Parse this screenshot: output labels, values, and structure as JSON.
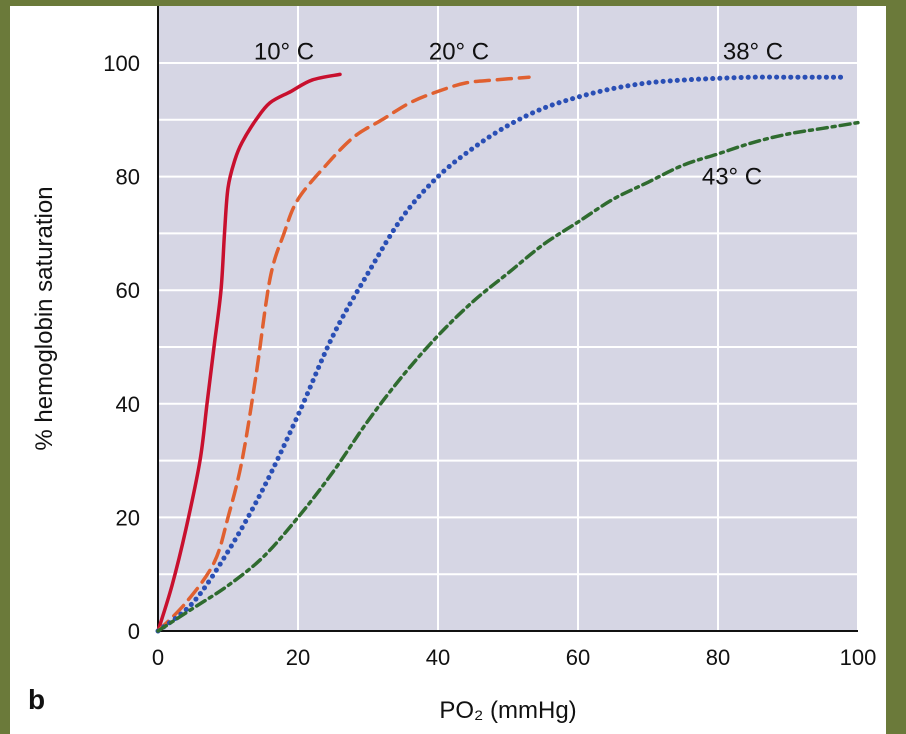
{
  "panel_letter": "b",
  "chart_data": {
    "type": "line",
    "xlabel": "PO₂ (mmHg)",
    "ylabel": "% hemoglobin saturation",
    "xlim": [
      0,
      100
    ],
    "ylim": [
      0,
      100
    ],
    "x_ticks": [
      "0",
      "20",
      "40",
      "60",
      "80",
      "100"
    ],
    "y_ticks": [
      "0",
      "20",
      "40",
      "60",
      "80",
      "100"
    ],
    "grid": "horizontal lines every 10, vertical lines every 20",
    "plot_background": "#d6d6e4",
    "series": [
      {
        "name": "10° C",
        "color": "#c8102e",
        "style": "solid",
        "x": [
          0,
          2,
          4,
          6,
          7,
          8,
          9,
          9.5,
          10,
          11,
          12,
          14,
          16,
          19,
          22,
          26
        ],
        "y": [
          0,
          8,
          18,
          30,
          40,
          50,
          60,
          70,
          78,
          83,
          86,
          90,
          93,
          95,
          97,
          98
        ]
      },
      {
        "name": "20° C",
        "color": "#e06030",
        "style": "dashed",
        "x": [
          0,
          4,
          8,
          10,
          12,
          14,
          16,
          18,
          20,
          24,
          28,
          32,
          36,
          40,
          44,
          48,
          53
        ],
        "y": [
          0,
          5,
          12,
          20,
          30,
          45,
          62,
          70,
          76,
          82,
          87,
          90,
          93,
          95,
          96.5,
          97,
          97.5
        ]
      },
      {
        "name": "38° C",
        "color": "#2a4fb5",
        "style": "dotted",
        "x": [
          0,
          5,
          10,
          15,
          20,
          25,
          30,
          35,
          40,
          45,
          50,
          55,
          60,
          65,
          70,
          75,
          80,
          85,
          90,
          95,
          98
        ],
        "y": [
          0,
          5,
          14,
          25,
          38,
          52,
          63,
          73,
          80,
          85,
          89,
          92,
          94,
          95.5,
          96.5,
          97,
          97.3,
          97.5,
          97.5,
          97.5,
          97.5
        ]
      },
      {
        "name": "43° C",
        "color": "#2f6b2f",
        "style": "dashdot",
        "x": [
          0,
          5,
          10,
          15,
          20,
          25,
          30,
          35,
          40,
          45,
          50,
          55,
          60,
          65,
          70,
          75,
          80,
          85,
          90,
          95,
          100
        ],
        "y": [
          0,
          4,
          8,
          13,
          20,
          28,
          37,
          45,
          52,
          58,
          63,
          68,
          72,
          76,
          79,
          82,
          84,
          86,
          87.5,
          88.5,
          89.5
        ]
      }
    ],
    "annotations": [
      {
        "text": "10° C",
        "series": 0,
        "x": 18,
        "y": 102
      },
      {
        "text": "20° C",
        "series": 1,
        "x": 43,
        "y": 102
      },
      {
        "text": "38° C",
        "series": 2,
        "x": 85,
        "y": 102
      },
      {
        "text": "43° C",
        "series": 3,
        "x": 82,
        "y": 80
      }
    ]
  }
}
